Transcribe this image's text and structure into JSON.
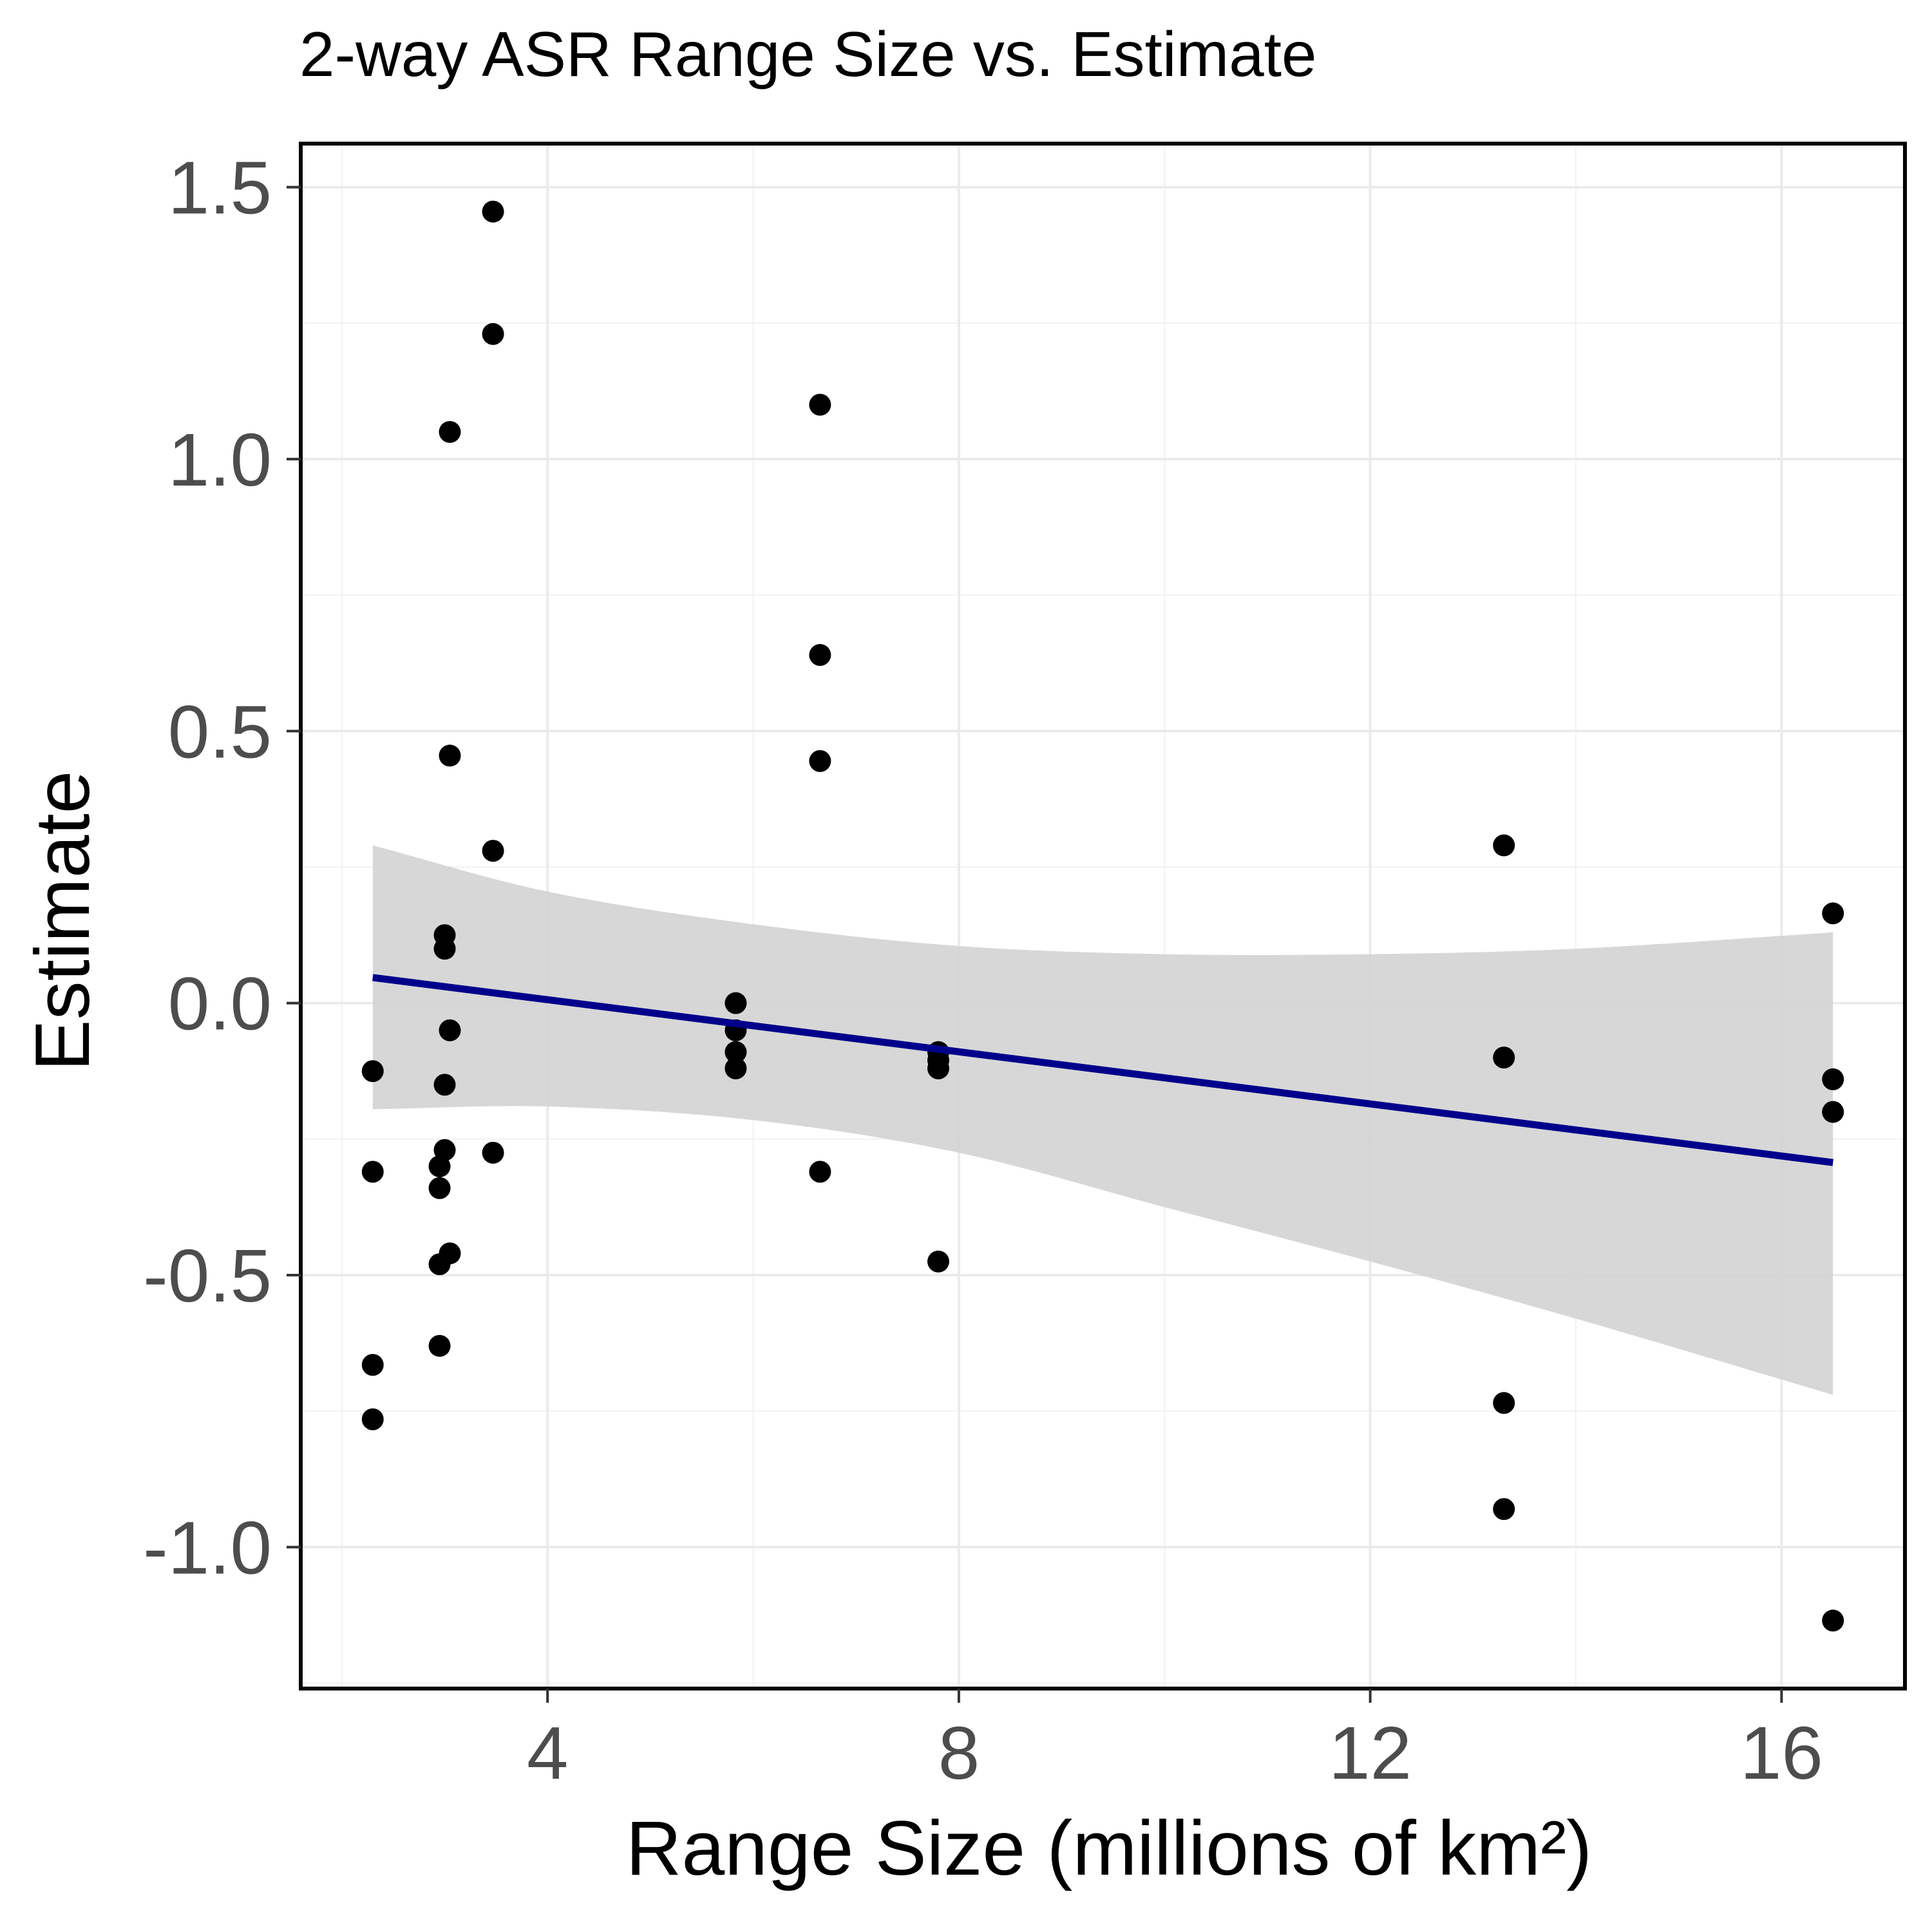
{
  "chart_data": {
    "type": "scatter",
    "title": "2-way ASR Range Size vs. Estimate",
    "xlabel": "Range Size (millions of km²)",
    "ylabel": "Estimate",
    "xlim": [
      1.6,
      17.2
    ],
    "ylim": [
      -1.26,
      1.58
    ],
    "x_ticks": [
      4,
      8,
      12,
      16
    ],
    "x_tick_labels": [
      "4",
      "8",
      "12",
      "16"
    ],
    "y_ticks": [
      -1.0,
      -0.5,
      0.0,
      0.5,
      1.0,
      1.5
    ],
    "y_tick_labels": [
      "-1.0",
      "-0.5",
      "0.0",
      "0.5",
      "1.0",
      "1.5"
    ],
    "grid": true,
    "points": [
      {
        "x": 2.3,
        "y": -0.125
      },
      {
        "x": 2.3,
        "y": -0.31
      },
      {
        "x": 2.3,
        "y": -0.665
      },
      {
        "x": 2.3,
        "y": -0.765
      },
      {
        "x": 2.95,
        "y": -0.3
      },
      {
        "x": 2.95,
        "y": -0.34
      },
      {
        "x": 2.95,
        "y": -0.48
      },
      {
        "x": 2.95,
        "y": -0.63
      },
      {
        "x": 3.0,
        "y": 0.125
      },
      {
        "x": 3.0,
        "y": 0.1
      },
      {
        "x": 3.0,
        "y": -0.15
      },
      {
        "x": 3.0,
        "y": -0.27
      },
      {
        "x": 3.05,
        "y": 1.05
      },
      {
        "x": 3.05,
        "y": 0.455
      },
      {
        "x": 3.05,
        "y": -0.05
      },
      {
        "x": 3.05,
        "y": -0.46
      },
      {
        "x": 3.47,
        "y": 1.455
      },
      {
        "x": 3.47,
        "y": 1.23
      },
      {
        "x": 3.47,
        "y": 0.28
      },
      {
        "x": 3.47,
        "y": -0.275
      },
      {
        "x": 5.83,
        "y": 0.0
      },
      {
        "x": 5.83,
        "y": -0.05
      },
      {
        "x": 5.83,
        "y": -0.09
      },
      {
        "x": 5.83,
        "y": -0.12
      },
      {
        "x": 6.65,
        "y": 1.1
      },
      {
        "x": 6.65,
        "y": 0.64
      },
      {
        "x": 6.65,
        "y": 0.445
      },
      {
        "x": 6.65,
        "y": -0.31
      },
      {
        "x": 7.8,
        "y": -0.09
      },
      {
        "x": 7.8,
        "y": -0.105
      },
      {
        "x": 7.8,
        "y": -0.12
      },
      {
        "x": 7.8,
        "y": -0.475
      },
      {
        "x": 13.3,
        "y": 0.29
      },
      {
        "x": 13.3,
        "y": -0.1
      },
      {
        "x": 13.3,
        "y": -0.735
      },
      {
        "x": 13.3,
        "y": -0.93
      },
      {
        "x": 16.5,
        "y": 0.165
      },
      {
        "x": 16.5,
        "y": -0.14
      },
      {
        "x": 16.5,
        "y": -0.2
      },
      {
        "x": 16.5,
        "y": -1.135
      }
    ],
    "fit_line": {
      "x": [
        2.3,
        16.5
      ],
      "y": [
        0.047,
        -0.293
      ],
      "color": "#00008b"
    },
    "confidence_band": {
      "x": [
        2.3,
        4.0,
        6.0,
        8.0,
        10.0,
        12.0,
        14.0,
        16.5
      ],
      "upper": [
        0.29,
        0.205,
        0.145,
        0.105,
        0.09,
        0.09,
        0.1,
        0.13
      ],
      "lower": [
        -0.195,
        -0.19,
        -0.215,
        -0.275,
        -0.375,
        -0.475,
        -0.58,
        -0.72
      ],
      "color": "#d3d3d3"
    },
    "point_color": "#000000"
  }
}
